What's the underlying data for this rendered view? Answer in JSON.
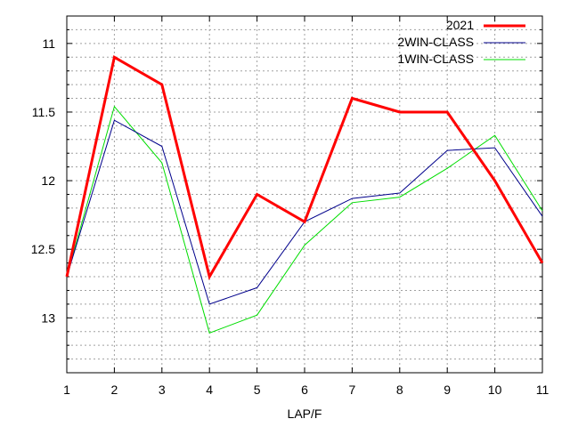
{
  "chart_data": {
    "type": "line",
    "title": "",
    "xlabel": "LAP/F",
    "ylabel": "",
    "x": [
      1,
      2,
      3,
      4,
      5,
      6,
      7,
      8,
      9,
      10,
      11
    ],
    "xlim": [
      1,
      11
    ],
    "ylim": [
      10.8,
      13.4
    ],
    "y_reversed": true,
    "x_ticks": [
      "1",
      "2",
      "3",
      "4",
      "5",
      "6",
      "7",
      "8",
      "9",
      "10",
      "11"
    ],
    "y_ticks": [
      "11",
      "11.5",
      "12",
      "12.5",
      "13"
    ],
    "grid": true,
    "legend_position": "top-right",
    "series": [
      {
        "name": "2021",
        "color": "#ff0000",
        "values": [
          12.7,
          11.1,
          11.3,
          12.7,
          12.1,
          12.3,
          11.4,
          11.5,
          11.5,
          12.0,
          12.6
        ]
      },
      {
        "name": "2WIN-CLASS",
        "color": "#00008b",
        "values": [
          12.7,
          11.56,
          11.75,
          12.9,
          12.78,
          12.3,
          12.13,
          12.09,
          11.78,
          11.76,
          12.26
        ]
      },
      {
        "name": "1WIN-CLASS",
        "color": "#00dd00",
        "values": [
          12.7,
          11.46,
          11.87,
          13.11,
          12.98,
          12.47,
          12.16,
          12.12,
          11.91,
          11.67,
          12.22
        ]
      }
    ]
  }
}
